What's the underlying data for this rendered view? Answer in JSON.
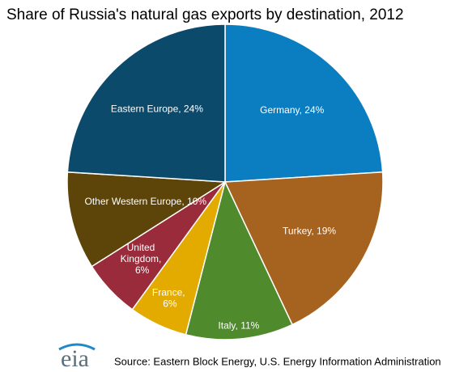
{
  "chart_data": {
    "type": "pie",
    "title": "Share of Russia's natural gas exports by destination, 2012",
    "categories": [
      "Germany, 24%",
      "Turkey, 19%",
      "Italy, 11%",
      "France, 6%",
      "United Kingdom, 6%",
      "Other Western Europe, 10%",
      "Eastern Europe, 24%"
    ],
    "values": [
      24,
      19,
      11,
      6,
      6,
      10,
      24
    ],
    "colors": [
      "#0b7dc1",
      "#a6621f",
      "#4f8a2d",
      "#e3aa00",
      "#9a2b3b",
      "#5d4409",
      "#0c4a6c"
    ],
    "source": "Source: Eastern Block Energy, U.S. Energy Information Administration",
    "logo": "eia"
  }
}
